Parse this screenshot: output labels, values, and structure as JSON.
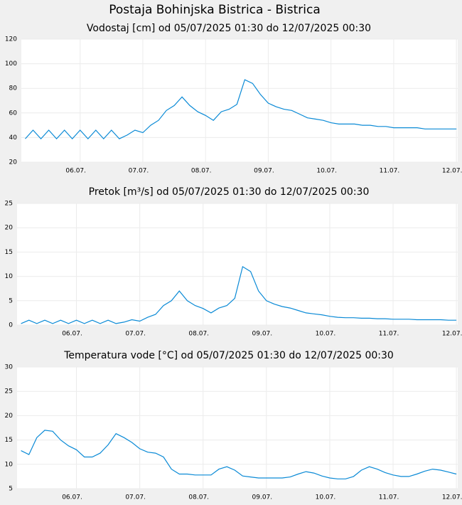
{
  "title": "Postaja Bohinjska Bistrica - Bistrica",
  "chart_data": [
    {
      "type": "line",
      "title": "Vodostaj [cm] od 05/07/2025 01:30 do 12/07/2025 00:30",
      "color": "#0a8ad6",
      "grid": true,
      "xlim": [
        5.0625,
        12.0208
      ],
      "ylim": [
        20,
        120
      ],
      "yticks": [
        20,
        40,
        60,
        80,
        100,
        120
      ],
      "xticks": [
        {
          "value": 6,
          "label": "06.07."
        },
        {
          "value": 7,
          "label": "07.07."
        },
        {
          "value": 8,
          "label": "08.07."
        },
        {
          "value": 9,
          "label": "09.07."
        },
        {
          "value": 10,
          "label": "10.07."
        },
        {
          "value": 11,
          "label": "11.07."
        },
        {
          "value": 12,
          "label": "12.07."
        }
      ],
      "x": [
        5.125,
        5.25,
        5.375,
        5.5,
        5.625,
        5.75,
        5.875,
        6.0,
        6.125,
        6.25,
        6.375,
        6.5,
        6.625,
        6.75,
        6.875,
        7.0,
        7.125,
        7.25,
        7.375,
        7.5,
        7.625,
        7.75,
        7.875,
        8.0,
        8.125,
        8.25,
        8.375,
        8.5,
        8.625,
        8.75,
        8.875,
        9.0,
        9.125,
        9.25,
        9.375,
        9.5,
        9.625,
        9.75,
        9.875,
        10.0,
        10.125,
        10.25,
        10.375,
        10.5,
        10.625,
        10.75,
        10.875,
        11.0,
        11.125,
        11.25,
        11.375,
        11.5,
        11.625,
        11.75,
        11.875,
        12.0
      ],
      "values": [
        39,
        46,
        39,
        46,
        39,
        46,
        39,
        46,
        39,
        46,
        39,
        46,
        39,
        42,
        46,
        44,
        50,
        54,
        62,
        66,
        73,
        66,
        61,
        58,
        54,
        61,
        63,
        67,
        87,
        84,
        75,
        68,
        65,
        63,
        62,
        59,
        56,
        55,
        54,
        52,
        51,
        51,
        51,
        50,
        50,
        49,
        49,
        48,
        48,
        48,
        48,
        47,
        47,
        47,
        47,
        47
      ]
    },
    {
      "type": "line",
      "title": "Pretok [m³/s] od 05/07/2025 01:30 do 12/07/2025 00:30",
      "color": "#0a8ad6",
      "grid": true,
      "xlim": [
        5.0625,
        12.0208
      ],
      "ylim": [
        0,
        25
      ],
      "yticks": [
        0,
        5,
        10,
        15,
        20,
        25
      ],
      "xticks": [
        {
          "value": 6,
          "label": "06.07."
        },
        {
          "value": 7,
          "label": "07.07."
        },
        {
          "value": 8,
          "label": "08.07."
        },
        {
          "value": 9,
          "label": "09.07."
        },
        {
          "value": 10,
          "label": "10.07."
        },
        {
          "value": 11,
          "label": "11.07."
        },
        {
          "value": 12,
          "label": "12.07."
        }
      ],
      "x": [
        5.125,
        5.25,
        5.375,
        5.5,
        5.625,
        5.75,
        5.875,
        6.0,
        6.125,
        6.25,
        6.375,
        6.5,
        6.625,
        6.75,
        6.875,
        7.0,
        7.125,
        7.25,
        7.375,
        7.5,
        7.625,
        7.75,
        7.875,
        8.0,
        8.125,
        8.25,
        8.375,
        8.5,
        8.625,
        8.75,
        8.875,
        9.0,
        9.125,
        9.25,
        9.375,
        9.5,
        9.625,
        9.75,
        9.875,
        10.0,
        10.125,
        10.25,
        10.375,
        10.5,
        10.625,
        10.75,
        10.875,
        11.0,
        11.125,
        11.25,
        11.375,
        11.5,
        11.625,
        11.75,
        11.875,
        12.0
      ],
      "values": [
        0.3,
        1,
        0.3,
        1,
        0.3,
        1,
        0.3,
        1,
        0.3,
        1,
        0.3,
        1,
        0.3,
        0.6,
        1.1,
        0.8,
        1.6,
        2.2,
        4,
        5,
        7,
        5,
        4,
        3.4,
        2.5,
        3.5,
        4,
        5.5,
        12,
        11,
        7,
        5,
        4.3,
        3.8,
        3.5,
        3,
        2.5,
        2.3,
        2.1,
        1.8,
        1.6,
        1.5,
        1.5,
        1.4,
        1.4,
        1.3,
        1.3,
        1.2,
        1.2,
        1.2,
        1.1,
        1.1,
        1.1,
        1.1,
        1.0,
        1.0
      ]
    },
    {
      "type": "line",
      "title": "Temperatura vode [°C] od 05/07/2025 01:30 do 12/07/2025 00:30",
      "color": "#0a8ad6",
      "grid": true,
      "xlim": [
        5.0625,
        12.0208
      ],
      "ylim": [
        5,
        30
      ],
      "yticks": [
        5,
        10,
        15,
        20,
        25,
        30
      ],
      "xticks": [
        {
          "value": 6,
          "label": "06.07."
        },
        {
          "value": 7,
          "label": "07.07."
        },
        {
          "value": 8,
          "label": "08.07."
        },
        {
          "value": 9,
          "label": "09.07."
        },
        {
          "value": 10,
          "label": "10.07."
        },
        {
          "value": 11,
          "label": "11.07."
        },
        {
          "value": 12,
          "label": "12.07."
        }
      ],
      "x": [
        5.125,
        5.25,
        5.375,
        5.5,
        5.625,
        5.75,
        5.875,
        6.0,
        6.125,
        6.25,
        6.375,
        6.5,
        6.625,
        6.75,
        6.875,
        7.0,
        7.125,
        7.25,
        7.375,
        7.5,
        7.625,
        7.75,
        7.875,
        8.0,
        8.125,
        8.25,
        8.375,
        8.5,
        8.625,
        8.75,
        8.875,
        9.0,
        9.125,
        9.25,
        9.375,
        9.5,
        9.625,
        9.75,
        9.875,
        10.0,
        10.125,
        10.25,
        10.375,
        10.5,
        10.625,
        10.75,
        10.875,
        11.0,
        11.125,
        11.25,
        11.375,
        11.5,
        11.625,
        11.75,
        11.875,
        12.0
      ],
      "values": [
        12.8,
        12,
        15.5,
        17,
        16.8,
        15,
        13.8,
        13,
        11.5,
        11.5,
        12.3,
        14,
        16.3,
        15.5,
        14.5,
        13.2,
        12.5,
        12.3,
        11.5,
        9,
        8,
        8,
        7.8,
        7.8,
        7.8,
        9,
        9.5,
        8.8,
        7.6,
        7.4,
        7.2,
        7.2,
        7.2,
        7.2,
        7.4,
        8.0,
        8.5,
        8.2,
        7.6,
        7.2,
        7.0,
        7.0,
        7.5,
        8.8,
        9.5,
        9.0,
        8.3,
        7.8,
        7.5,
        7.5,
        8.0,
        8.6,
        9.0,
        8.8,
        8.4,
        8.0
      ]
    }
  ]
}
